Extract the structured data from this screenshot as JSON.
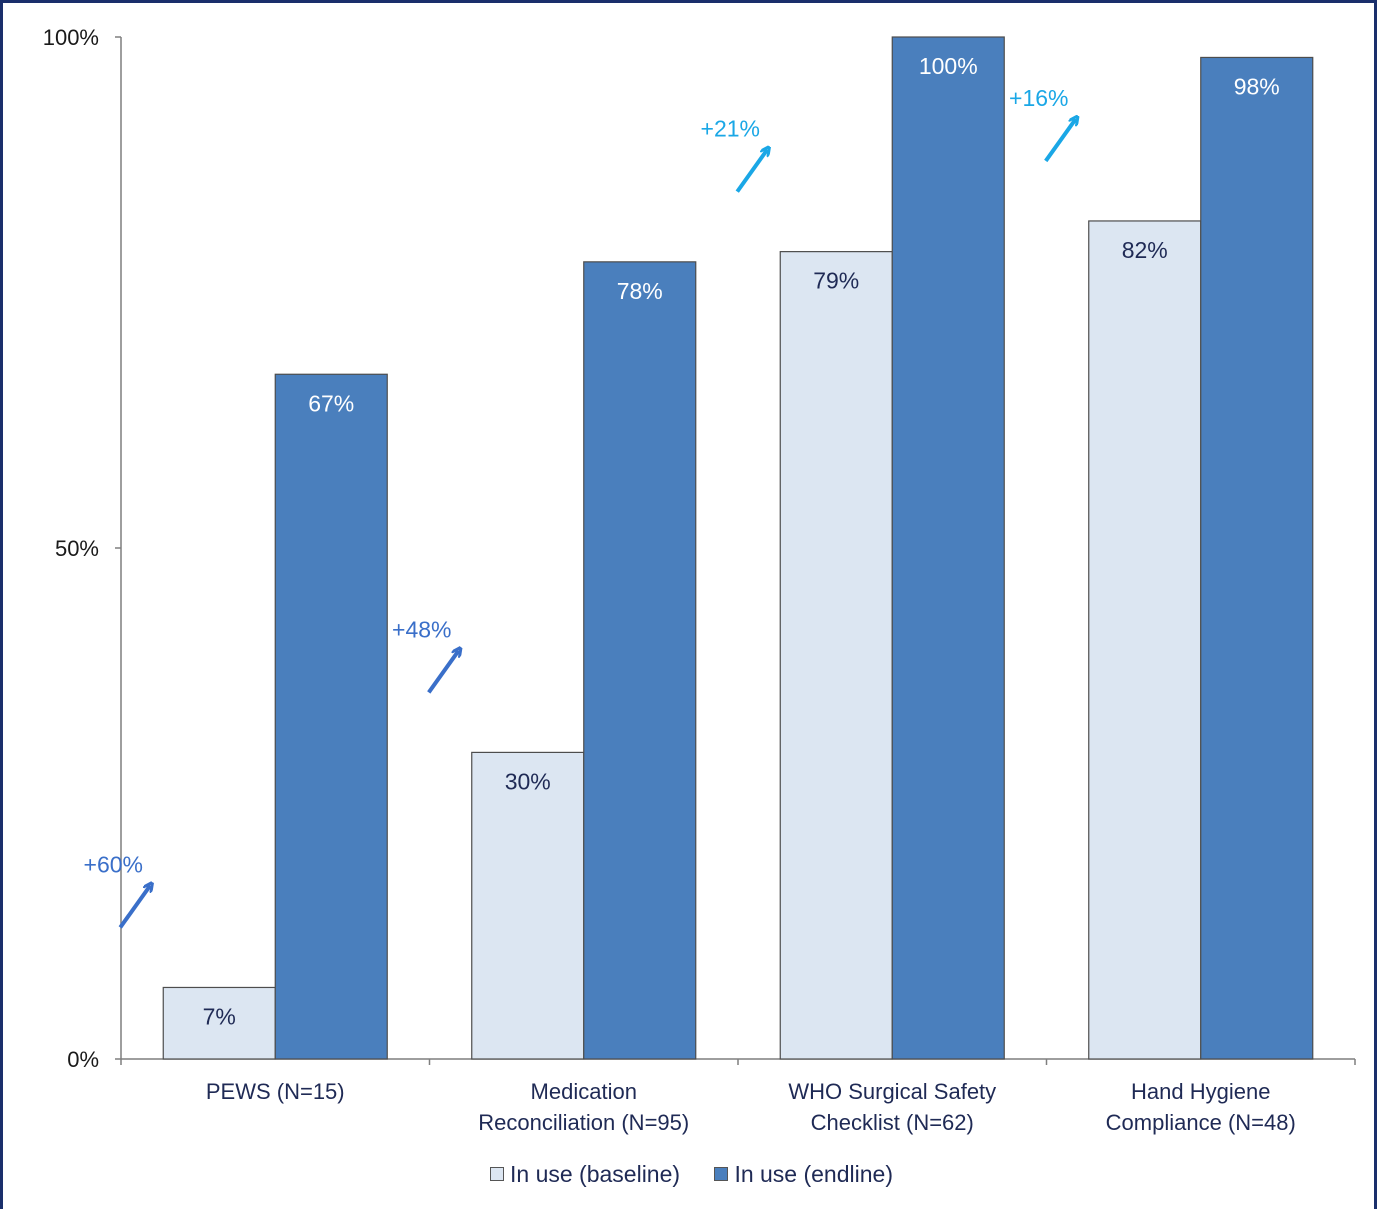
{
  "chart_data": {
    "type": "bar",
    "categories": [
      [
        "PEWS (N=15)"
      ],
      [
        "Medication",
        "Reconciliation (N=95)"
      ],
      [
        "WHO Surgical Safety",
        "Checklist (N=62)"
      ],
      [
        "Hand Hygiene",
        "Compliance (N=48)"
      ]
    ],
    "series": [
      {
        "name": "In use (baseline)",
        "values": [
          7,
          30,
          79,
          82
        ],
        "labels": [
          "7%",
          "30%",
          "79%",
          "82%"
        ],
        "color": "#dce6f2"
      },
      {
        "name": "In use (endline)",
        "values": [
          67,
          78,
          100,
          98
        ],
        "labels": [
          "67%",
          "78%",
          "100%",
          "98%"
        ],
        "color": "#4a7fbd"
      }
    ],
    "changes": [
      "+60%",
      "+48%",
      "+21%",
      "+16%"
    ],
    "change_colors": [
      "#3a6fc9",
      "#3a6fc9",
      "#1aa7e6",
      "#1aa7e6"
    ],
    "y_ticks": [
      "0%",
      "50%",
      "100%"
    ],
    "ylim": [
      0,
      100
    ],
    "title": "",
    "xlabel": "",
    "ylabel": "",
    "grid": false,
    "legend": "bottom"
  }
}
